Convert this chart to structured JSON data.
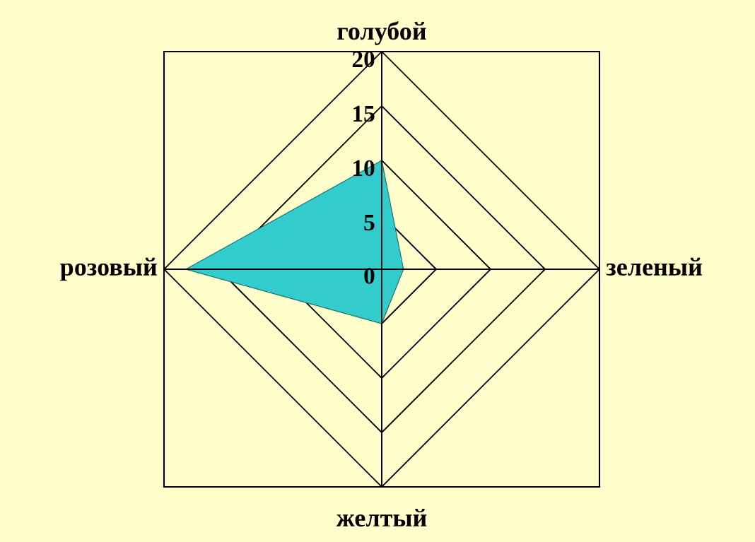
{
  "chart_data": {
    "type": "radar",
    "categories": [
      "голубой",
      "зеленый",
      "желтый",
      "розовый"
    ],
    "series": [
      {
        "color": "#33cccc",
        "values": [
          10,
          2,
          5,
          18
        ]
      }
    ],
    "ylim": [
      0,
      20
    ],
    "yticks": [
      0,
      5,
      10,
      15,
      20
    ],
    "grid": true
  }
}
